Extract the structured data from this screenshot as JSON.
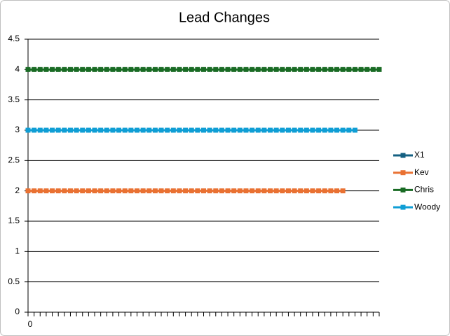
{
  "chart_data": {
    "type": "line",
    "title": "Lead Changes",
    "categories": [
      "0",
      null,
      null,
      null,
      null,
      null,
      null,
      null,
      null,
      null,
      null,
      null,
      null,
      null,
      null,
      null,
      null,
      null,
      null,
      null,
      null,
      null,
      null,
      null,
      null,
      null,
      null,
      null,
      null,
      null,
      null,
      null,
      null,
      null,
      null,
      null,
      null,
      null,
      null,
      null,
      null,
      null,
      null,
      null,
      null,
      null,
      null,
      null,
      null,
      null,
      null,
      null,
      null,
      null,
      null,
      null,
      null,
      null,
      null
    ],
    "series": [
      {
        "name": "X1",
        "color": "#156082",
        "values": [
          null,
          null,
          null,
          null,
          null,
          null,
          null,
          null,
          null,
          null,
          null,
          null,
          null,
          null,
          null,
          null,
          null,
          null,
          null,
          null,
          null,
          null,
          null,
          null,
          null,
          null,
          null,
          null,
          null,
          null,
          null,
          null,
          null,
          null,
          null,
          null,
          null,
          null,
          null,
          null,
          null,
          null,
          null,
          null,
          null,
          null,
          null,
          null,
          null,
          null,
          null,
          null,
          null,
          null,
          null,
          null,
          null,
          null,
          null
        ]
      },
      {
        "name": "Kev",
        "color": "#e97132",
        "values": [
          2,
          2,
          2,
          2,
          2,
          2,
          2,
          2,
          2,
          2,
          2,
          2,
          2,
          2,
          2,
          2,
          2,
          2,
          2,
          2,
          2,
          2,
          2,
          2,
          2,
          2,
          2,
          2,
          2,
          2,
          2,
          2,
          2,
          2,
          2,
          2,
          2,
          2,
          2,
          2,
          2,
          2,
          2,
          2,
          2,
          2,
          2,
          2,
          2,
          2,
          2,
          2,
          2,
          null,
          null,
          null,
          null,
          null,
          null
        ]
      },
      {
        "name": "Chris",
        "color": "#196b24",
        "values": [
          4,
          4,
          4,
          4,
          4,
          4,
          4,
          4,
          4,
          4,
          4,
          4,
          4,
          4,
          4,
          4,
          4,
          4,
          4,
          4,
          4,
          4,
          4,
          4,
          4,
          4,
          4,
          4,
          4,
          4,
          4,
          4,
          4,
          4,
          4,
          4,
          4,
          4,
          4,
          4,
          4,
          4,
          4,
          4,
          4,
          4,
          4,
          4,
          4,
          4,
          4,
          4,
          4,
          4,
          4,
          4,
          4,
          4,
          4
        ]
      },
      {
        "name": "Woody",
        "color": "#0f9ed5",
        "values": [
          3,
          3,
          3,
          3,
          3,
          3,
          3,
          3,
          3,
          3,
          3,
          3,
          3,
          3,
          3,
          3,
          3,
          3,
          3,
          3,
          3,
          3,
          3,
          3,
          3,
          3,
          3,
          3,
          3,
          3,
          3,
          3,
          3,
          3,
          3,
          3,
          3,
          3,
          3,
          3,
          3,
          3,
          3,
          3,
          3,
          3,
          3,
          3,
          3,
          3,
          3,
          3,
          3,
          3,
          3,
          null,
          null,
          null,
          null
        ]
      }
    ],
    "ylim": [
      0,
      4.5
    ],
    "yticks": [
      0,
      0.5,
      1,
      1.5,
      2,
      2.5,
      3,
      3.5,
      4,
      4.5
    ],
    "grid": true,
    "legend": "right"
  }
}
